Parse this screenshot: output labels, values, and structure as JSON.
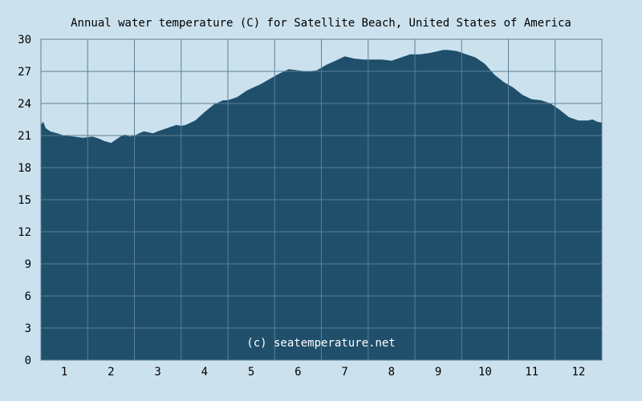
{
  "chart_data": {
    "type": "area",
    "title": "Annual water temperature (C) for Satellite Beach, United States of America",
    "watermark": "(c) seatemperature.net",
    "xlabel": "",
    "ylabel": "",
    "x_ticks": [
      "1",
      "2",
      "3",
      "4",
      "5",
      "6",
      "7",
      "8",
      "9",
      "10",
      "11",
      "12"
    ],
    "y_ticks": [
      "0",
      "3",
      "6",
      "9",
      "12",
      "15",
      "18",
      "21",
      "24",
      "27",
      "30"
    ],
    "xlim": [
      0.5,
      12.5
    ],
    "ylim": [
      0,
      30
    ],
    "grid": true,
    "colors": {
      "background": "#cbe2ee",
      "fill": "#1f4f6b",
      "grid": "#5c7f95",
      "text": "#000000",
      "watermark": "#ffffff"
    },
    "series": [
      {
        "x": [
          0.5,
          0.55,
          0.6,
          0.7,
          0.85,
          1.0,
          1.2,
          1.4,
          1.6,
          1.75,
          1.85,
          2.0,
          2.1,
          2.2,
          2.3,
          2.4,
          2.5,
          2.6,
          2.7,
          2.8,
          2.9,
          3.0,
          3.2,
          3.4,
          3.5,
          3.6,
          3.8,
          4.0,
          4.2,
          4.4,
          4.5,
          4.7,
          4.9,
          5.0,
          5.2,
          5.4,
          5.6,
          5.8,
          6.0,
          6.2,
          6.4,
          6.6,
          6.8,
          7.0,
          7.2,
          7.4,
          7.6,
          7.8,
          8.0,
          8.2,
          8.4,
          8.6,
          8.8,
          9.0,
          9.1,
          9.2,
          9.4,
          9.6,
          9.8,
          10.0,
          10.2,
          10.4,
          10.6,
          10.8,
          11.0,
          11.2,
          11.4,
          11.6,
          11.8,
          12.0,
          12.2,
          12.3,
          12.4,
          12.5
        ],
        "y": [
          22.0,
          22.3,
          21.7,
          21.4,
          21.2,
          21.0,
          20.9,
          20.8,
          20.9,
          20.7,
          20.5,
          20.3,
          20.6,
          20.9,
          21.1,
          20.9,
          21.0,
          21.2,
          21.4,
          21.3,
          21.2,
          21.4,
          21.7,
          22.0,
          21.9,
          22.0,
          22.4,
          23.2,
          23.9,
          24.3,
          24.3,
          24.6,
          25.2,
          25.4,
          25.8,
          26.3,
          26.8,
          27.2,
          27.1,
          27.0,
          27.1,
          27.6,
          28.0,
          28.4,
          28.2,
          28.1,
          28.1,
          28.1,
          28.0,
          28.3,
          28.6,
          28.6,
          28.7,
          28.9,
          29.0,
          29.0,
          28.9,
          28.6,
          28.3,
          27.7,
          26.7,
          26.0,
          25.5,
          24.8,
          24.4,
          24.3,
          24.0,
          23.4,
          22.7,
          22.4,
          22.4,
          22.5,
          22.3,
          22.2
        ]
      }
    ]
  }
}
